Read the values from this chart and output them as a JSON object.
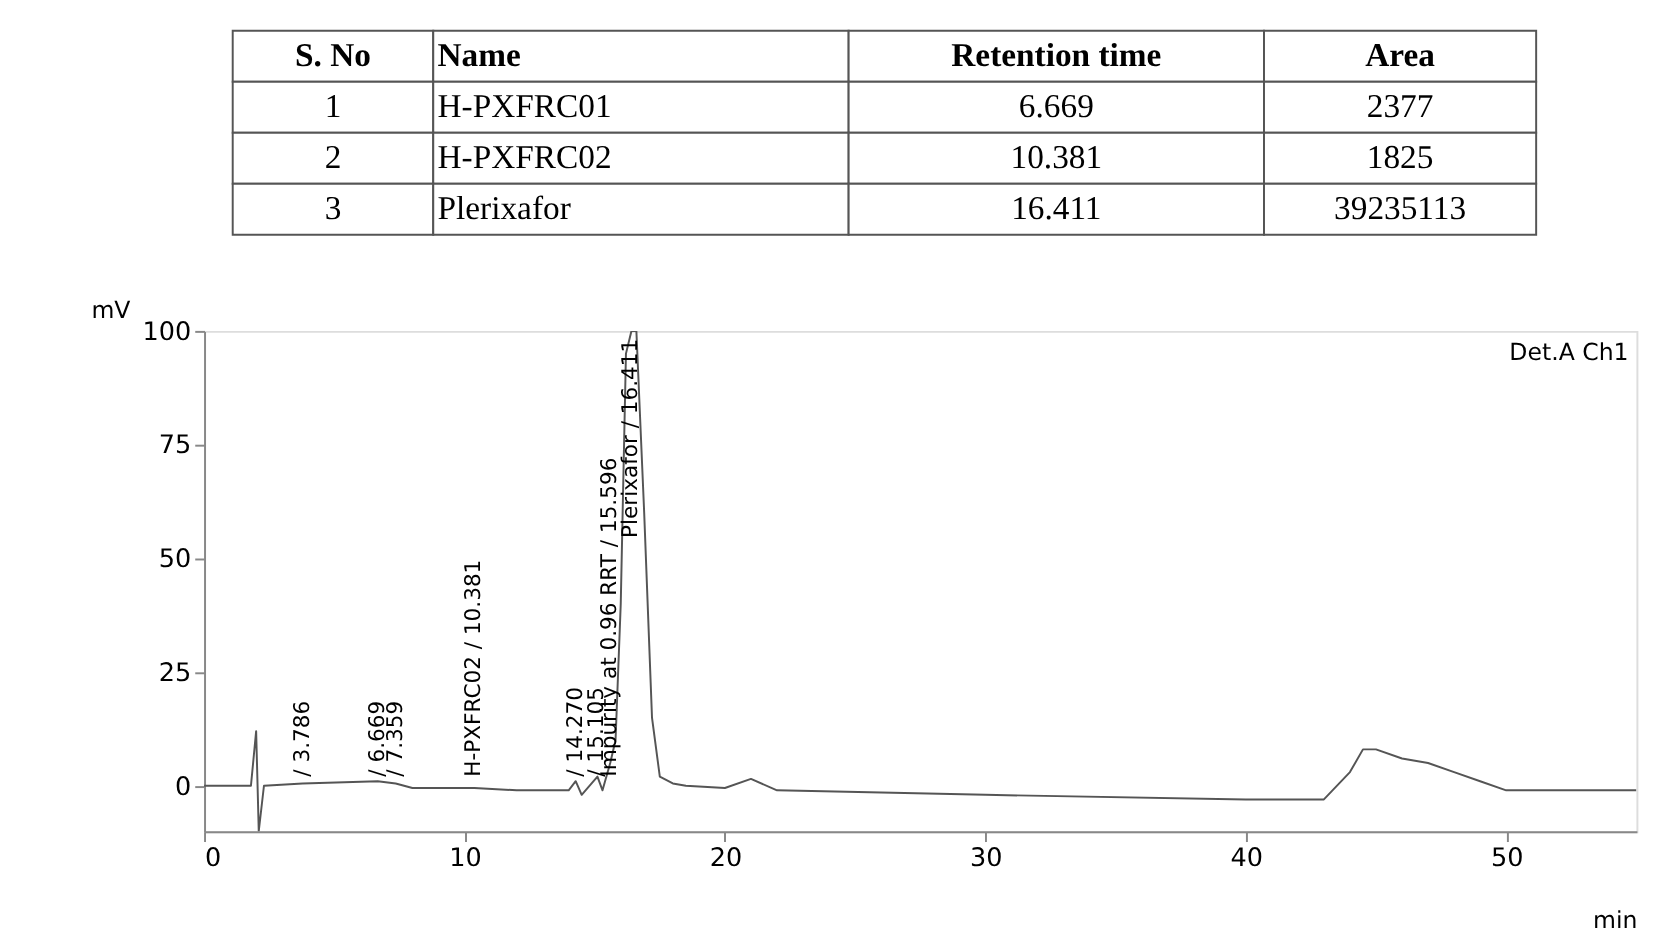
{
  "chart_data": [
    {
      "type": "other",
      "categories": [
        "S. No",
        "Name",
        "Retention time",
        "Area"
      ],
      "annotations": [
        "1",
        "H-PXFRC01",
        "6.669",
        "2377",
        "2",
        "H-PXFRC02",
        "10.381",
        "1825",
        "3",
        "Plerixafor",
        "16.411",
        "39235113"
      ]
    },
    {
      "type": "line",
      "xlabel": "min",
      "ylabel": "mV",
      "x": [
        0,
        1.8,
        2.0,
        2.1,
        2.3,
        3.786,
        6.669,
        7.359,
        8,
        10.381,
        12,
        14,
        14.27,
        14.5,
        15.105,
        15.3,
        15.596,
        15.8,
        16.0,
        16.2,
        16.411,
        16.6,
        16.9,
        17.2,
        17.5,
        18,
        18.5,
        20,
        21,
        22,
        30,
        40,
        43,
        44,
        44.5,
        45,
        46,
        47,
        48,
        49,
        50,
        55
      ],
      "series": [
        {
          "color": "#555555",
          "values": [
            0,
            0,
            12,
            -10,
            0,
            0.5,
            1,
            0.5,
            -0.5,
            -0.5,
            -1,
            -1,
            1,
            -2,
            2,
            -1,
            5,
            10,
            40,
            95,
            100,
            100,
            60,
            15,
            2,
            0.5,
            0,
            -0.5,
            1.5,
            -1,
            -2,
            -3,
            -3,
            3,
            8,
            8,
            6,
            5,
            3,
            1,
            -1,
            -1
          ]
        }
      ],
      "xlim": [
        0,
        55
      ],
      "ylim": [
        -10,
        100
      ],
      "xticks": [
        0,
        10,
        20,
        30,
        40,
        50
      ],
      "yticks": [
        0,
        25,
        50,
        75,
        100
      ],
      "grid": false,
      "marker": "none",
      "line_style": "solid",
      "annotations": [
        {
          "text": "/ 3.786",
          "x": 3.786,
          "y": 2
        },
        {
          "text": "/ 6.669",
          "x": 6.669,
          "y": 2
        },
        {
          "text": "/ 7.359",
          "x": 7.359,
          "y": 2
        },
        {
          "text": "H-PXFRC02 / 10.381",
          "x": 10.381,
          "y": 2
        },
        {
          "text": "/ 14.270",
          "x": 14.27,
          "y": 2
        },
        {
          "text": "/ 15.105",
          "x": 15.105,
          "y": 2
        },
        {
          "text": "Impurity at 0.96 RRT / 15.596",
          "x": 15.596,
          "y": 2
        },
        {
          "text": "Plerixafor / 16.411",
          "x": 16.411,
          "y": 100
        },
        "Det.A Ch1"
      ]
    }
  ]
}
